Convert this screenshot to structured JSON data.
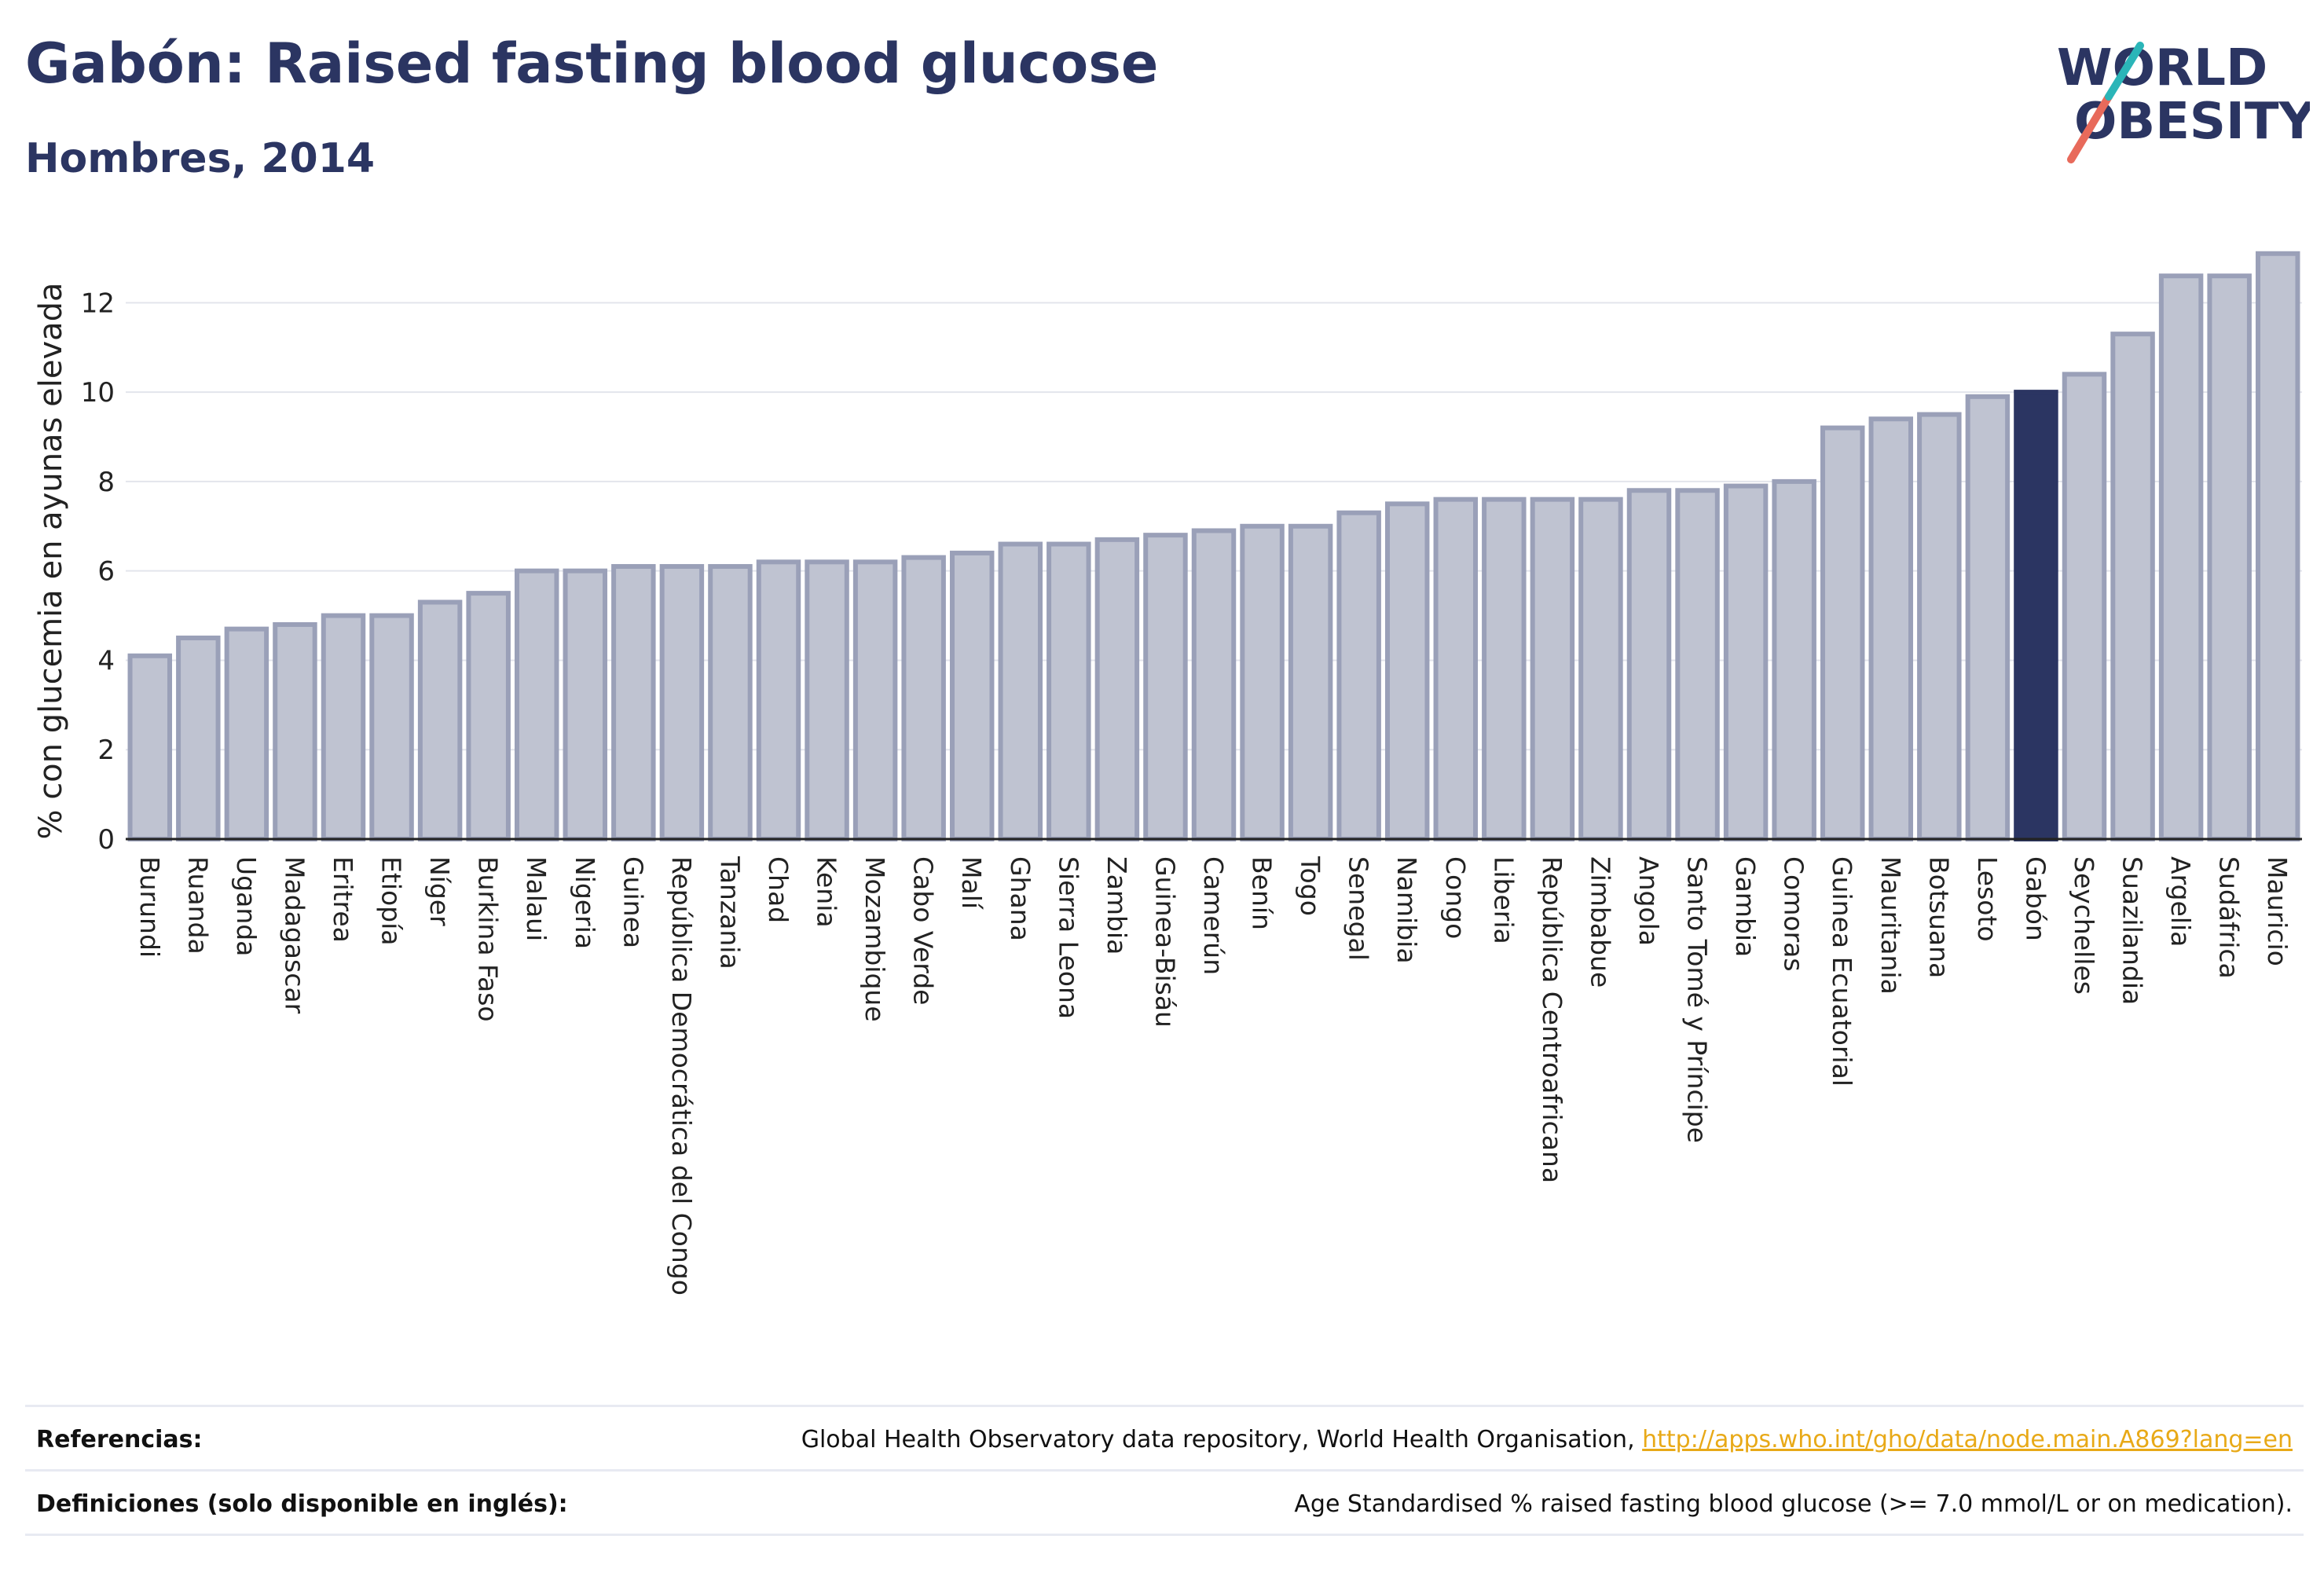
{
  "header": {
    "title": "Gabón: Raised fasting blood glucose",
    "subtitle": "Hombres, 2014"
  },
  "logo": {
    "line1": "WORLD",
    "line2": "OBESITY",
    "colors": {
      "text": "#2b3562",
      "slash_teal": "#2bb5b8",
      "slash_coral": "#e86a5b"
    }
  },
  "chart_data": {
    "type": "bar",
    "ylabel": "% con glucemia en ayunas elevada",
    "xlabel": "",
    "ylim": [
      0,
      13.5
    ],
    "yticks": [
      0,
      2,
      4,
      6,
      8,
      10,
      12
    ],
    "grid": true,
    "highlight": "Gabón",
    "colors": {
      "bar_fill": "#bfc3d1",
      "bar_stroke": "#9aa0b8",
      "highlight": "#2b3562"
    },
    "categories": [
      "Burundi",
      "Ruanda",
      "Uganda",
      "Madagascar",
      "Eritrea",
      "Etiopía",
      "Níger",
      "Burkina Faso",
      "Malaui",
      "Nigeria",
      "Guinea",
      "República Democrática del Congo",
      "Tanzania",
      "Chad",
      "Kenia",
      "Mozambique",
      "Cabo Verde",
      "Malí",
      "Ghana",
      "Sierra Leona",
      "Zambia",
      "Guinea-Bisáu",
      "Camerún",
      "Benín",
      "Togo",
      "Senegal",
      "Namibia",
      "Congo",
      "Liberia",
      "República Centroafricana",
      "Zimbabue",
      "Angola",
      "Santo Tomé y Príncipe",
      "Gambia",
      "Comoras",
      "Guinea Ecuatorial",
      "Mauritania",
      "Botsuana",
      "Lesoto",
      "Gabón",
      "Seychelles",
      "Suazilandia",
      "Argelia",
      "Sudáfrica",
      "Mauricio"
    ],
    "values": [
      4.1,
      4.5,
      4.7,
      4.8,
      5.0,
      5.0,
      5.3,
      5.5,
      6.0,
      6.0,
      6.1,
      6.1,
      6.1,
      6.2,
      6.2,
      6.2,
      6.3,
      6.4,
      6.6,
      6.6,
      6.7,
      6.8,
      6.9,
      7.0,
      7.0,
      7.3,
      7.5,
      7.6,
      7.6,
      7.6,
      7.6,
      7.8,
      7.8,
      7.9,
      8.0,
      9.2,
      9.4,
      9.5,
      9.9,
      10.0,
      10.4,
      11.3,
      12.6,
      12.6,
      13.1
    ]
  },
  "footer": {
    "references_label": "Referencias:",
    "references_text": "Global Health Observatory data repository, World Health Organisation, ",
    "references_link": "http://apps.who.int/gho/data/node.main.A869?lang=en",
    "definitions_label": "Definiciones (solo disponible en inglés):",
    "definitions_text": "Age Standardised % raised fasting blood glucose (>= 7.0 mmol/L or on medication)."
  }
}
